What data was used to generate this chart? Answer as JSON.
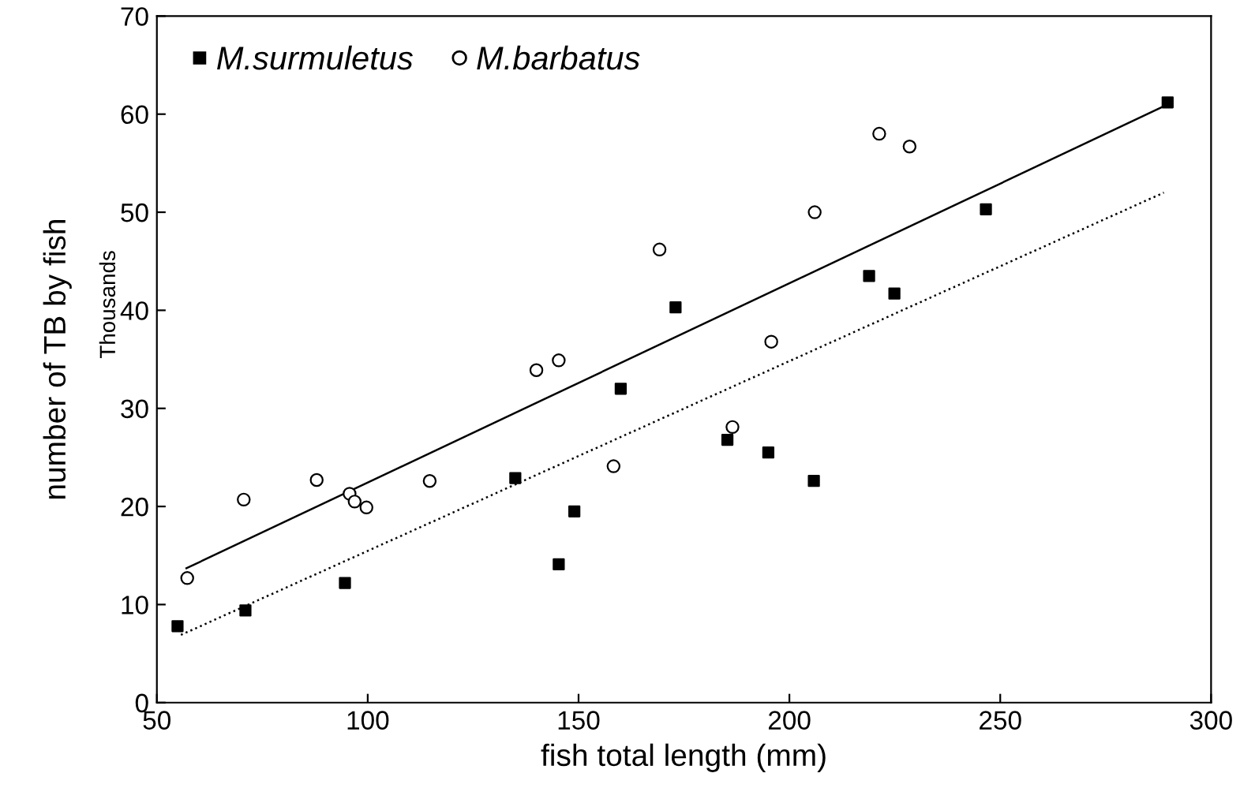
{
  "chart_data": {
    "type": "scatter",
    "xlabel": "fish total length (mm)",
    "ylabel": "number of TB by fish",
    "annotations": [
      "Thousands"
    ],
    "xlim": [
      50,
      300
    ],
    "xticks": [
      50,
      100,
      150,
      200,
      250,
      300
    ],
    "ylim": [
      0,
      70
    ],
    "yticks": [
      0,
      10,
      20,
      30,
      40,
      50,
      60,
      70
    ],
    "grid": false,
    "legend": "top left",
    "series": [
      {
        "name": "M.surmuletus",
        "color": "#000000",
        "marker": "square",
        "x": [
          54.9,
          71,
          94.6,
          135,
          149,
          145.3,
          160,
          173,
          185.3,
          195,
          205.8,
          218.9,
          224.9,
          246.6,
          289.7
        ],
        "values": [
          7.8,
          9.4,
          12.2,
          22.9,
          19.5,
          14.1,
          32,
          40.3,
          26.8,
          25.5,
          22.6,
          43.5,
          41.7,
          50.3,
          61.2
        ]
      },
      {
        "name": "M.barbatus",
        "color": "#000000",
        "marker": "circle",
        "x": [
          57.2,
          70.6,
          87.9,
          95.7,
          96.9,
          99.7,
          114.7,
          140,
          145.3,
          158.3,
          169.2,
          186.5,
          195.7,
          206,
          221.3,
          228.5
        ],
        "values": [
          12.7,
          20.7,
          22.7,
          21.3,
          20.5,
          19.9,
          22.6,
          33.9,
          34.9,
          24.1,
          46.2,
          28.1,
          36.8,
          50,
          58,
          56.7
        ]
      },
      {
        "type": "line",
        "color": "#000000",
        "line_style": "solid",
        "marker": "none",
        "x": [
          57,
          288.8
        ],
        "values": [
          13.7,
          60.8
        ]
      },
      {
        "type": "line",
        "color": "#000000",
        "line_style": "dotted",
        "marker": "none",
        "x": [
          55.7,
          288.8
        ],
        "values": [
          6.9,
          52
        ]
      }
    ]
  }
}
